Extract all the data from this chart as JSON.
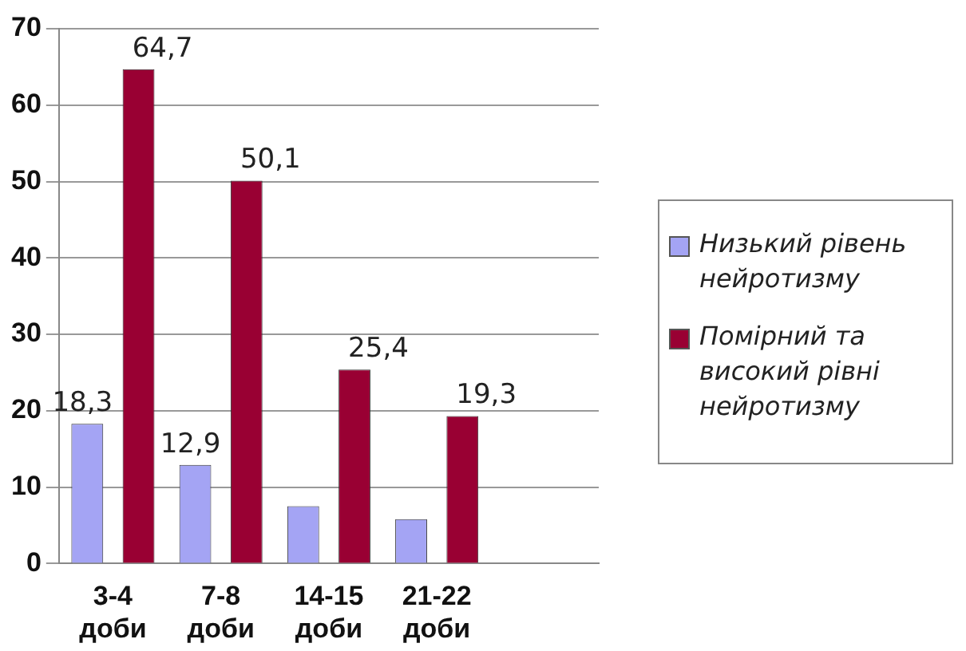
{
  "chart_data": {
    "type": "bar",
    "categories": [
      "3-4 доби",
      "7-8 доби",
      "14-15 доби",
      "21-22 доби",
      null
    ],
    "series": [
      {
        "name": "Низький рівень нейротизму",
        "color": "#a4a4f4",
        "values": [
          18.3,
          12.9,
          7.5,
          5.8,
          null
        ],
        "value_labels": [
          "18,3",
          "12,9",
          null,
          null,
          null
        ]
      },
      {
        "name": "Помірний та високий рівні нейротизму",
        "color": "#990033",
        "values": [
          64.7,
          50.1,
          25.4,
          19.3,
          null
        ],
        "value_labels": [
          "64,7",
          "50,1",
          "25,4",
          "19,3",
          null
        ]
      }
    ],
    "ylim": [
      0,
      70
    ],
    "yticks": [
      0,
      10,
      20,
      30,
      40,
      50,
      60,
      70
    ],
    "grid": "y",
    "legend": "right"
  }
}
